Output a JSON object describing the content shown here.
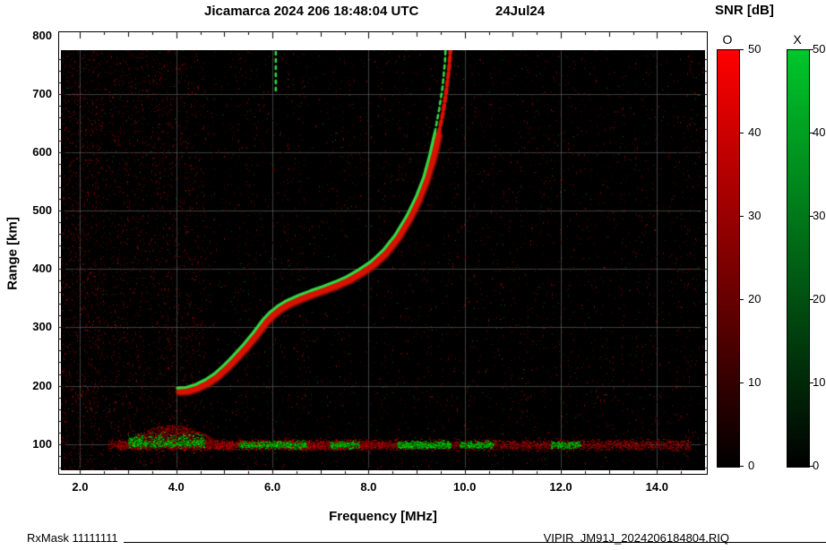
{
  "header": {
    "title": "Jicamarca 2024 206 18:48:04 UTC",
    "date": "24Jul24",
    "snr_title": "SNR [dB]"
  },
  "axes": {
    "ylabel": "Range [km]",
    "xlabel": "Frequency [MHz]"
  },
  "colorbars": {
    "o_label": "O",
    "x_label": "X",
    "o_color": "#ff0000",
    "x_color": "#00c72a",
    "ticks": [
      0,
      10,
      20,
      30,
      40,
      50
    ],
    "min": 0,
    "max": 50
  },
  "footer": {
    "rxmask": "RxMask 11111111",
    "file": "VIPIR  JM91J_2024206184804.RIQ"
  },
  "chart_data": {
    "type": "heatmap",
    "title": "Jicamarca 2024 206 18:48:04 UTC  24Jul24",
    "xlabel": "Frequency [MHz]",
    "ylabel": "Range [km]",
    "xlim": [
      1.6,
      15.0
    ],
    "ylim": [
      55,
      775
    ],
    "xticks": [
      2.0,
      4.0,
      6.0,
      8.0,
      10.0,
      12.0,
      14.0
    ],
    "xtick_labels": [
      "2.0",
      "4.0",
      "6.0",
      "8.0",
      "10.0",
      "12.0",
      "14.0"
    ],
    "yticks": [
      100,
      200,
      300,
      400,
      500,
      600,
      700,
      800
    ],
    "grid": true,
    "background": "#000000",
    "colorbar": {
      "label": "SNR [dB]",
      "range": [
        0,
        50
      ],
      "modes": [
        "O",
        "X"
      ]
    },
    "series": [
      {
        "name": "F-region trace O-mode",
        "mode": "O",
        "color": "#d81200",
        "points": [
          [
            4.08,
            190
          ],
          [
            4.25,
            191
          ],
          [
            4.45,
            196
          ],
          [
            4.65,
            204
          ],
          [
            4.85,
            215
          ],
          [
            5.05,
            230
          ],
          [
            5.25,
            247
          ],
          [
            5.45,
            265
          ],
          [
            5.65,
            285
          ],
          [
            5.85,
            307
          ],
          [
            6.0,
            320
          ],
          [
            6.15,
            330
          ],
          [
            6.35,
            340
          ],
          [
            6.6,
            349
          ],
          [
            6.85,
            357
          ],
          [
            7.1,
            364
          ],
          [
            7.35,
            372
          ],
          [
            7.6,
            381
          ],
          [
            7.85,
            393
          ],
          [
            8.1,
            407
          ],
          [
            8.35,
            426
          ],
          [
            8.6,
            452
          ],
          [
            8.85,
            486
          ],
          [
            9.05,
            520
          ],
          [
            9.2,
            552
          ],
          [
            9.35,
            592
          ],
          [
            9.45,
            628
          ],
          [
            9.55,
            668
          ],
          [
            9.62,
            706
          ],
          [
            9.68,
            748
          ],
          [
            9.72,
            792
          ]
        ]
      },
      {
        "name": "F-region trace X-mode",
        "mode": "X",
        "color": "#2fd944",
        "points": [
          [
            4.02,
            196
          ],
          [
            4.2,
            197
          ],
          [
            4.4,
            202
          ],
          [
            4.6,
            210
          ],
          [
            4.8,
            221
          ],
          [
            5.0,
            236
          ],
          [
            5.2,
            253
          ],
          [
            5.4,
            271
          ],
          [
            5.6,
            291
          ],
          [
            5.8,
            313
          ],
          [
            5.95,
            326
          ],
          [
            6.1,
            336
          ],
          [
            6.3,
            346
          ],
          [
            6.55,
            355
          ],
          [
            6.8,
            363
          ],
          [
            7.05,
            370
          ],
          [
            7.3,
            378
          ],
          [
            7.55,
            387
          ],
          [
            7.8,
            399
          ],
          [
            8.05,
            413
          ],
          [
            8.3,
            432
          ],
          [
            8.55,
            458
          ],
          [
            8.8,
            492
          ],
          [
            9.0,
            526
          ],
          [
            9.15,
            558
          ],
          [
            9.28,
            598
          ],
          [
            9.38,
            634
          ],
          [
            9.47,
            674
          ],
          [
            9.54,
            712
          ],
          [
            9.59,
            756
          ],
          [
            9.62,
            806
          ]
        ]
      }
    ],
    "upper_echoes": [
      {
        "freq": 6.07,
        "km_span": [
          706,
          806
        ],
        "mode": "X"
      }
    ],
    "e_region": {
      "center_km": 98,
      "red_span": [
        2.6,
        14.7
      ],
      "dense_red_span": [
        2.8,
        8.3
      ],
      "green_spans": [
        [
          3.0,
          4.6
        ],
        [
          5.3,
          6.7
        ],
        [
          7.2,
          7.8
        ],
        [
          8.6,
          9.7
        ],
        [
          9.9,
          10.6
        ],
        [
          11.8,
          12.4
        ]
      ],
      "hump": {
        "span": [
          2.8,
          5.0
        ],
        "top_km": 132
      }
    },
    "noise": {
      "description": "sparse red/green speckle noise on black, vertical red streaks denser at low frequency",
      "dense_freq_below": 4.6,
      "left_edge_freq": 2.4
    }
  }
}
